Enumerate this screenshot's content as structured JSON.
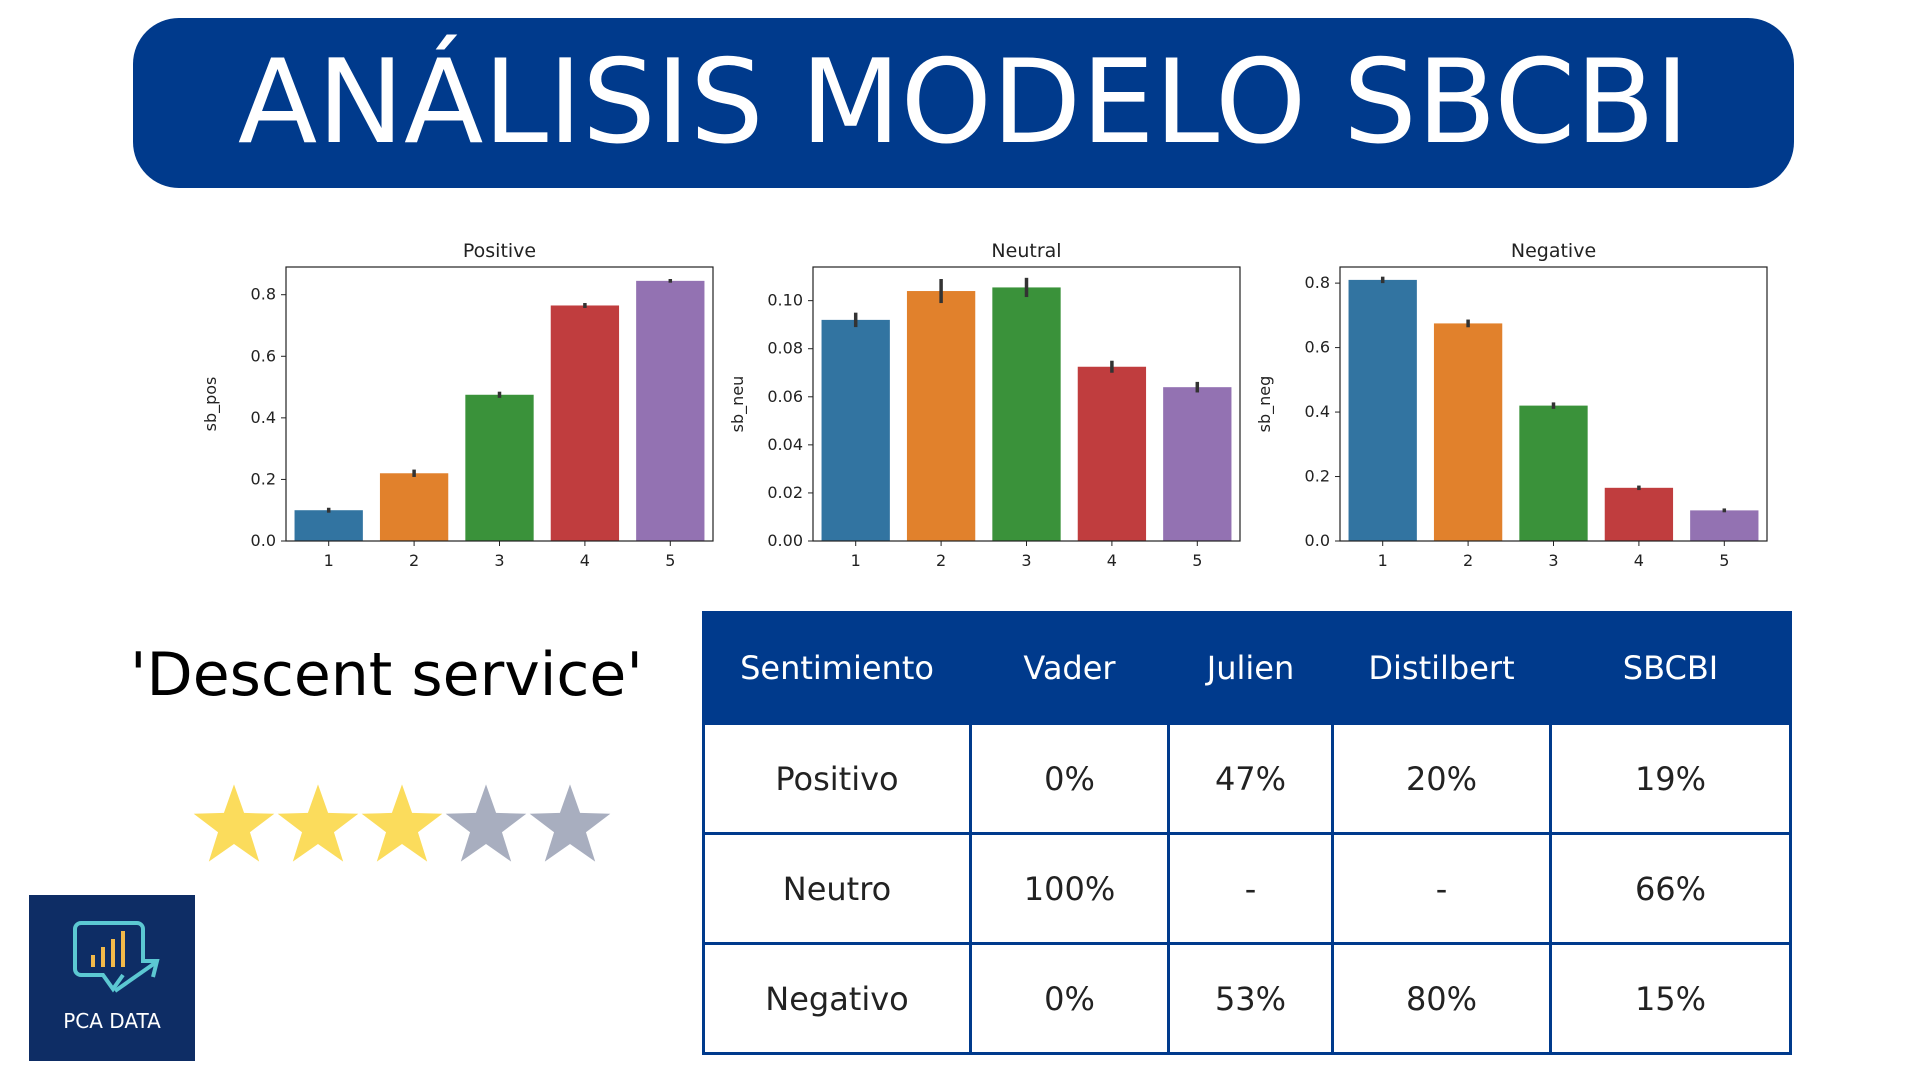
{
  "title": "ANÁLISIS MODELO SBCBI",
  "review": {
    "text": "'Descent service'",
    "rating": 3,
    "max_rating": 5
  },
  "colors": {
    "banner": "#003a8c",
    "star_filled": "#fbdc5c",
    "star_empty": "#a8aebf",
    "logo_bg": "#0e2d65"
  },
  "logo": {
    "icon": "chart-arrow-icon",
    "text": "PCA DATA"
  },
  "chart_data": [
    {
      "type": "bar",
      "title": "Positive",
      "ylabel": "sb_pos",
      "xlabel": "",
      "categories": [
        "1",
        "2",
        "3",
        "4",
        "5"
      ],
      "values": [
        0.1,
        0.22,
        0.475,
        0.765,
        0.845
      ],
      "errors": [
        0.008,
        0.012,
        0.01,
        0.008,
        0.006
      ],
      "ylim": [
        0,
        0.89
      ],
      "yticks": [
        0.0,
        0.2,
        0.4,
        0.6,
        0.8
      ],
      "ytick_labels": [
        "0.0",
        "0.2",
        "0.4",
        "0.6",
        "0.8"
      ],
      "colors": [
        "#3274a1",
        "#e1812c",
        "#3a923a",
        "#c03d3e",
        "#9372b2"
      ]
    },
    {
      "type": "bar",
      "title": "Neutral",
      "ylabel": "sb_neu",
      "xlabel": "",
      "categories": [
        "1",
        "2",
        "3",
        "4",
        "5"
      ],
      "values": [
        0.092,
        0.104,
        0.1055,
        0.0725,
        0.064
      ],
      "errors": [
        0.003,
        0.005,
        0.004,
        0.0025,
        0.0022
      ],
      "ylim": [
        0,
        0.114
      ],
      "yticks": [
        0.0,
        0.02,
        0.04,
        0.06,
        0.08,
        0.1
      ],
      "ytick_labels": [
        "0.00",
        "0.02",
        "0.04",
        "0.06",
        "0.08",
        "0.10"
      ],
      "colors": [
        "#3274a1",
        "#e1812c",
        "#3a923a",
        "#c03d3e",
        "#9372b2"
      ]
    },
    {
      "type": "bar",
      "title": "Negative",
      "ylabel": "sb_neg",
      "xlabel": "",
      "categories": [
        "1",
        "2",
        "3",
        "4",
        "5"
      ],
      "values": [
        0.81,
        0.675,
        0.42,
        0.165,
        0.095
      ],
      "errors": [
        0.01,
        0.012,
        0.01,
        0.007,
        0.006
      ],
      "ylim": [
        0,
        0.85
      ],
      "yticks": [
        0.0,
        0.2,
        0.4,
        0.6,
        0.8
      ],
      "ytick_labels": [
        "0.0",
        "0.2",
        "0.4",
        "0.6",
        "0.8"
      ],
      "colors": [
        "#3274a1",
        "#e1812c",
        "#3a923a",
        "#c03d3e",
        "#9372b2"
      ]
    }
  ],
  "table": {
    "headers": [
      "Sentimiento",
      "Vader",
      "Julien",
      "Distilbert",
      "SBCBI"
    ],
    "rows": [
      [
        "Positivo",
        "0%",
        "47%",
        "20%",
        "19%"
      ],
      [
        "Neutro",
        "100%",
        "-",
        "-",
        "66%"
      ],
      [
        "Negativo",
        "0%",
        "53%",
        "80%",
        "15%"
      ]
    ]
  }
}
